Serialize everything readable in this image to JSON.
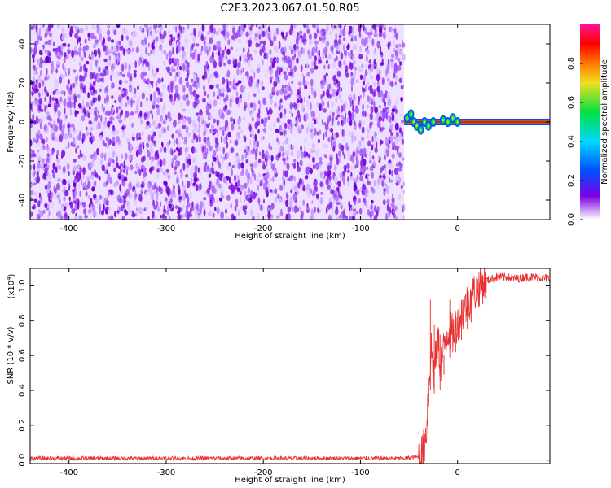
{
  "title": "C2E3.2023.067.01.50.R05",
  "colors": {
    "snr_line": "#e83030",
    "background": "#ffffff",
    "colormap": [
      "#ffffff",
      "#7a00e6",
      "#0050ff",
      "#00d8ff",
      "#00e040",
      "#f0e020",
      "#ff7a00",
      "#ff0000",
      "#ff1493"
    ]
  },
  "chart_data": [
    {
      "type": "heatmap",
      "name": "spectrogram",
      "xlabel": "Height of straight line (km)",
      "ylabel": "Frequency (Hz)",
      "xlim": [
        -440,
        95
      ],
      "ylim": [
        -50,
        50
      ],
      "xticks": [
        "-400",
        "-300",
        "-200",
        "-100",
        "0"
      ],
      "xtick_values": [
        -400,
        -300,
        -200,
        -100,
        0
      ],
      "yticks": [
        "-40",
        "-20",
        "0",
        "20",
        "40"
      ],
      "ytick_values": [
        -40,
        -20,
        0,
        20,
        40
      ],
      "noise_region": {
        "x_range": [
          -440,
          -55
        ],
        "freq_range": [
          -50,
          50
        ],
        "amplitude": 0.15
      },
      "carrier": {
        "x_range": [
          -55,
          95
        ],
        "freq_hz": 0,
        "amplitude": 1.0
      },
      "carrier_onset_wiggle": [
        {
          "x": -52,
          "freq": 2
        },
        {
          "x": -48,
          "freq": 4
        },
        {
          "x": -45,
          "freq": 0
        },
        {
          "x": -42,
          "freq": -2
        },
        {
          "x": -38,
          "freq": -4
        },
        {
          "x": -34,
          "freq": 0
        },
        {
          "x": -30,
          "freq": -2
        },
        {
          "x": -25,
          "freq": 0
        },
        {
          "x": -15,
          "freq": 1
        },
        {
          "x": -10,
          "freq": 0
        },
        {
          "x": -5,
          "freq": 2
        },
        {
          "x": 0,
          "freq": 0
        }
      ],
      "colorbar": {
        "label": "Normalized spectral amplitude",
        "range": [
          0.0,
          1.0
        ],
        "ticks": [
          "0.0",
          "0.2",
          "0.4",
          "0.6",
          "0.8"
        ],
        "tick_values": [
          0.0,
          0.2,
          0.4,
          0.6,
          0.8
        ]
      }
    },
    {
      "type": "line",
      "name": "snr",
      "xlabel": "Height of straight line (km)",
      "ylabel": "SNR (10 * v/v)",
      "y_multiplier": "(x10",
      "y_multiplier_exp": "4",
      "y_multiplier_close": ")",
      "xlim": [
        -440,
        95
      ],
      "ylim": [
        -0.02,
        1.1
      ],
      "xticks": [
        "-400",
        "-300",
        "-200",
        "-100",
        "0"
      ],
      "xtick_values": [
        -400,
        -300,
        -200,
        -100,
        0
      ],
      "yticks": [
        "0.0",
        "0.2",
        "0.4",
        "0.6",
        "0.8",
        "1.0"
      ],
      "ytick_values": [
        0.0,
        0.2,
        0.4,
        0.6,
        0.8,
        1.0
      ],
      "series": [
        {
          "x": [
            -440,
            -200,
            -55,
            -38,
            -35,
            -32,
            -31,
            -30,
            -28,
            -27,
            -25,
            -22,
            -20,
            -18,
            -15,
            -13,
            -10,
            -5,
            0,
            5,
            10,
            15,
            20,
            25,
            30,
            40,
            50,
            60,
            70,
            80,
            95
          ],
          "y": [
            0.01,
            0.01,
            0.01,
            0.02,
            0.06,
            0.18,
            0.3,
            0.45,
            0.55,
            0.65,
            0.5,
            0.6,
            0.7,
            0.55,
            0.6,
            0.68,
            0.75,
            0.72,
            0.8,
            0.85,
            0.9,
            0.95,
            0.98,
            1.01,
            1.03,
            1.05,
            1.05,
            1.04,
            1.05,
            1.05,
            1.04
          ]
        }
      ],
      "spikes": [
        {
          "x": -28,
          "y": 0.92
        },
        {
          "x": -24,
          "y": 0.78
        },
        {
          "x": -18,
          "y": 0.72
        },
        {
          "x": -14,
          "y": 0.6
        },
        {
          "x": -8,
          "y": 0.92
        },
        {
          "x": -2,
          "y": 0.84
        },
        {
          "x": 4,
          "y": 0.92
        },
        {
          "x": 10,
          "y": 0.98
        },
        {
          "x": 14,
          "y": 0.97
        }
      ]
    }
  ]
}
